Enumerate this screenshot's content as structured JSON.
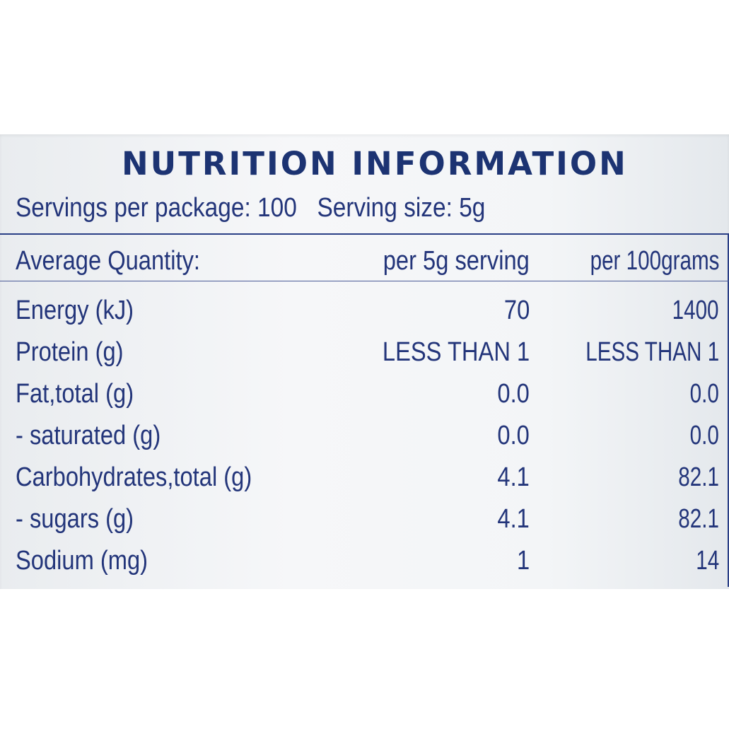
{
  "title": "NUTRITION INFORMATION",
  "servings": {
    "per_package": "Servings per package: 100",
    "serving_size": "Serving size: 5g"
  },
  "table": {
    "headers": [
      "Average Quantity:",
      "per 5g serving",
      "per 100grams"
    ],
    "rows": [
      {
        "name": "Energy (kJ)",
        "per_serving": "70",
        "per_100g": "1400"
      },
      {
        "name": "Protein (g)",
        "per_serving": "LESS THAN 1",
        "per_100g": "LESS THAN 1"
      },
      {
        "name": "Fat,total (g)",
        "per_serving": "0.0",
        "per_100g": "0.0"
      },
      {
        "name": "- saturated (g)",
        "per_serving": "0.0",
        "per_100g": "0.0"
      },
      {
        "name": "Carbohydrates,total (g)",
        "per_serving": "4.1",
        "per_100g": "82.1"
      },
      {
        "name": "- sugars (g)",
        "per_serving": "4.1",
        "per_100g": "82.1"
      },
      {
        "name": "Sodium (mg)",
        "per_serving": "1",
        "per_100g": "14"
      }
    ]
  },
  "colors": {
    "ink": "#23357a",
    "title": "#1c3372",
    "panel": "#f3f5f7"
  }
}
